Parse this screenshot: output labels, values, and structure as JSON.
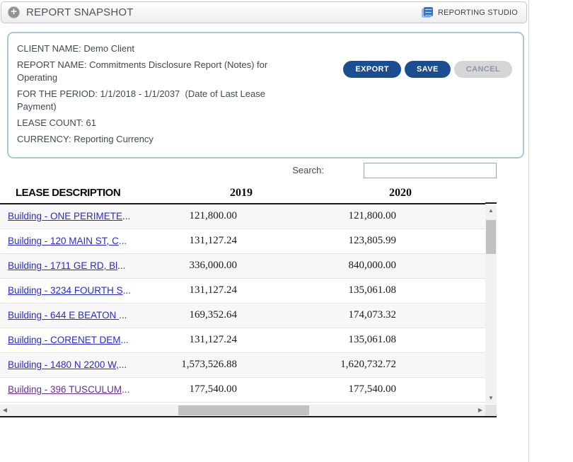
{
  "header": {
    "title": "REPORT SNAPSHOT",
    "studio_label": "REPORTING STUDIO"
  },
  "info_panel": {
    "fields": [
      {
        "label": "CLIENT NAME:",
        "value": "Demo Client"
      },
      {
        "label": "REPORT NAME:",
        "value": "Commitments Disclosure Report (Notes) for Operating"
      },
      {
        "label": "FOR THE PERIOD:",
        "value": "1/1/2018 - 1/1/2037  (Date of Last Lease Payment)"
      },
      {
        "label": "LEASE COUNT:",
        "value": "61"
      },
      {
        "label": "CURRENCY:",
        "value": "Reporting Currency"
      }
    ],
    "buttons": {
      "export": "EXPORT",
      "save": "SAVE",
      "cancel": "CANCEL"
    }
  },
  "search": {
    "label": "Search:",
    "value": ""
  },
  "table": {
    "columns": [
      "LEASE DESCRIPTION",
      "2019",
      "2020"
    ],
    "rows": [
      {
        "lease": "Building - ONE PERIMETE...",
        "y2019": "121,800.00",
        "y2020": "121,800.00",
        "visited": false
      },
      {
        "lease": "Building - 120 MAIN ST, C...",
        "y2019": "131,127.24",
        "y2020": "123,805.99",
        "visited": false
      },
      {
        "lease": "Building - 1711 GE RD, Bl...",
        "y2019": "336,000.00",
        "y2020": "840,000.00",
        "visited": false
      },
      {
        "lease": "Building - 3234 FOURTH S...",
        "y2019": "131,127.24",
        "y2020": "135,061.08",
        "visited": false
      },
      {
        "lease": "Building - 644 E BEATON ...",
        "y2019": "169,352.64",
        "y2020": "174,073.32",
        "visited": false
      },
      {
        "lease": "Building - CORENET DEM...",
        "y2019": "131,127.24",
        "y2020": "135,061.08",
        "visited": false
      },
      {
        "lease": "Building - 1480 N 2200 W,...",
        "y2019": "1,573,526.88",
        "y2020": "1,620,732.72",
        "visited": false
      },
      {
        "lease": "Building - 396 TUSCULUM...",
        "y2019": "177,540.00",
        "y2020": "177,540.00",
        "visited": true
      }
    ]
  },
  "colors": {
    "primary_button": "#1b4e90",
    "cancel_button": "#d6d6d6",
    "panel_border": "#a9c4dd",
    "link": "#2a2ad0",
    "link_visited": "#6a2d91",
    "studio_icon_blue": "#3f74b5"
  }
}
